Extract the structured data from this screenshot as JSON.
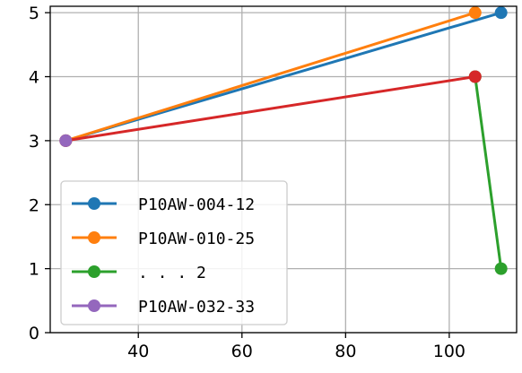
{
  "chart_data": {
    "type": "line",
    "title": "",
    "xlabel": "",
    "ylabel": "",
    "xlim": [
      23,
      113
    ],
    "ylim": [
      0,
      5.1
    ],
    "x_ticks": [
      40,
      60,
      80,
      100
    ],
    "y_ticks": [
      0,
      1,
      2,
      3,
      4,
      5
    ],
    "grid": true,
    "legend_position": "lower-left",
    "series": [
      {
        "name": "P10AW-004-12",
        "color": "#1f77b4",
        "points": [
          {
            "x": 26,
            "y": 3
          },
          {
            "x": 110,
            "y": 5
          }
        ]
      },
      {
        "name": "P10AW-010-25",
        "color": "#ff7f0e",
        "points": [
          {
            "x": 26,
            "y": 3
          },
          {
            "x": 105,
            "y": 5
          }
        ]
      },
      {
        "name": "... 2",
        "color": "#2ca02c",
        "points": [
          {
            "x": 105,
            "y": 4
          },
          {
            "x": 110,
            "y": 1
          }
        ]
      },
      {
        "name": "",
        "color": "#d62728",
        "points": [
          {
            "x": 26,
            "y": 3
          },
          {
            "x": 105,
            "y": 4
          }
        ]
      },
      {
        "name": "P10AW-032-33",
        "color": "#9467bd",
        "points": [
          {
            "x": 26,
            "y": 3
          }
        ]
      }
    ],
    "legend": [
      {
        "label": "P10AW-004-12",
        "color": "#1f77b4"
      },
      {
        "label": "P10AW-010-25",
        "color": "#ff7f0e"
      },
      {
        "label": ". . .  2",
        "color": "#2ca02c"
      },
      {
        "label": "P10AW-032-33",
        "color": "#9467bd"
      }
    ]
  }
}
